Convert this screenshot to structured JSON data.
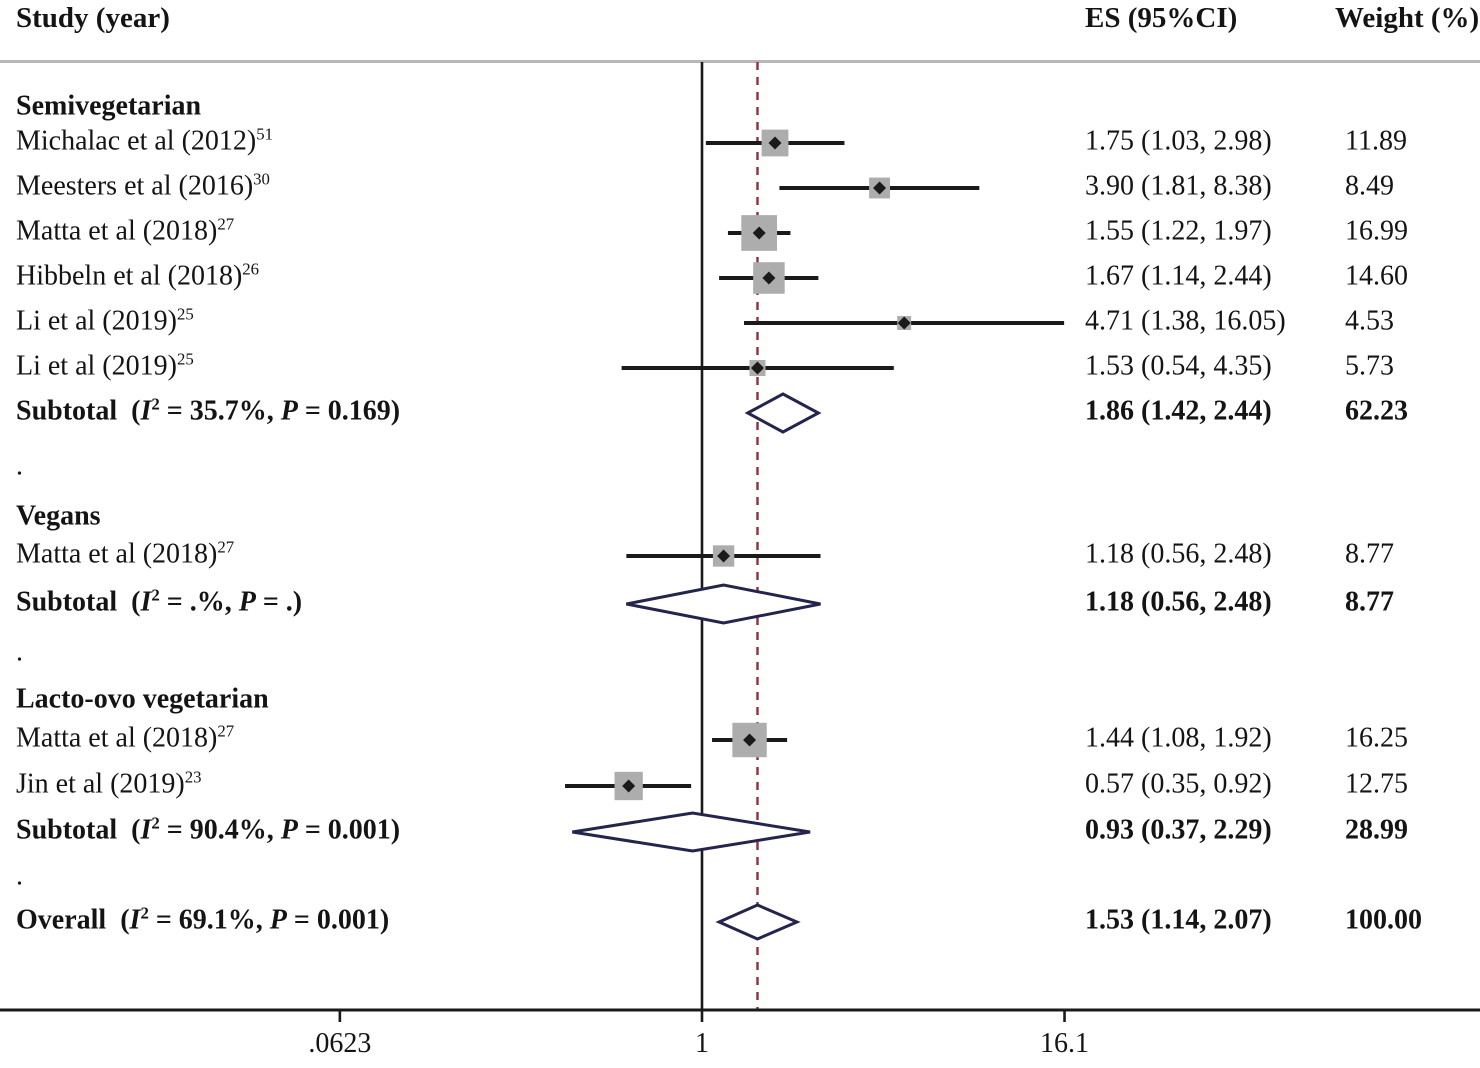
{
  "figure": {
    "header": {
      "study": "Study (year)",
      "es": "ES (95%CI)",
      "weight": "Weight (%)"
    },
    "colors": {
      "ci": "#1a1a1a",
      "square": "#adadad",
      "diamond": "#23254d",
      "null_line": "#1a1a1a",
      "dashed_line": "#8e2f3a",
      "rule": "#b8b8b8"
    }
  },
  "chart_data": {
    "type": "forest",
    "x_axis": {
      "scale": "log",
      "ticks": [
        {
          "value": 0.0623,
          "label": ".0623"
        },
        {
          "value": 1,
          "label": "1"
        },
        {
          "value": 16.1,
          "label": "16.1"
        }
      ],
      "null_value": 1,
      "overall_line": 1.53
    },
    "rows": [
      {
        "type": "group",
        "label": "Semivegetarian"
      },
      {
        "type": "study",
        "label": "Michalac et al (2012)",
        "ref": "51",
        "es": 1.75,
        "lo": 1.03,
        "hi": 2.98,
        "es_text": "1.75 (1.03, 2.98)",
        "weight": 11.89,
        "weight_text": "11.89"
      },
      {
        "type": "study",
        "label": "Meesters et al (2016)",
        "ref": "30",
        "es": 3.9,
        "lo": 1.81,
        "hi": 8.38,
        "es_text": "3.90 (1.81, 8.38)",
        "weight": 8.49,
        "weight_text": "8.49"
      },
      {
        "type": "study",
        "label": "Matta et al (2018)",
        "ref": "27",
        "es": 1.55,
        "lo": 1.22,
        "hi": 1.97,
        "es_text": "1.55 (1.22, 1.97)",
        "weight": 16.99,
        "weight_text": "16.99"
      },
      {
        "type": "study",
        "label": "Hibbeln et al (2018)",
        "ref": "26",
        "es": 1.67,
        "lo": 1.14,
        "hi": 2.44,
        "es_text": "1.67 (1.14, 2.44)",
        "weight": 14.6,
        "weight_text": "14.60"
      },
      {
        "type": "study",
        "label": "Li et al (2019)",
        "ref": "25",
        "es": 4.71,
        "lo": 1.38,
        "hi": 16.05,
        "es_text": "4.71 (1.38, 16.05)",
        "weight": 4.53,
        "weight_text": "4.53"
      },
      {
        "type": "study",
        "label": "Li et al (2019)",
        "ref": "25",
        "es": 1.53,
        "lo": 0.54,
        "hi": 4.35,
        "es_text": "1.53 (0.54, 4.35)",
        "weight": 5.73,
        "weight_text": "5.73"
      },
      {
        "type": "subtotal",
        "i2": "35.7%",
        "p": "0.169",
        "es": 1.86,
        "lo": 1.42,
        "hi": 2.44,
        "es_text": "1.86 (1.42, 2.44)",
        "weight_text": "62.23"
      },
      {
        "type": "dot"
      },
      {
        "type": "group",
        "label": "Vegans"
      },
      {
        "type": "study",
        "label": "Matta et al (2018)",
        "ref": "27",
        "es": 1.18,
        "lo": 0.56,
        "hi": 2.48,
        "es_text": "1.18 (0.56, 2.48)",
        "weight": 8.77,
        "weight_text": "8.77"
      },
      {
        "type": "subtotal",
        "i2": ".%",
        "p": ".",
        "es": 1.18,
        "lo": 0.56,
        "hi": 2.48,
        "es_text": "1.18 (0.56, 2.48)",
        "weight_text": "8.77"
      },
      {
        "type": "dot"
      },
      {
        "type": "group",
        "label": "Lacto-ovo vegetarian"
      },
      {
        "type": "study",
        "label": "Matta et al (2018)",
        "ref": "27",
        "es": 1.44,
        "lo": 1.08,
        "hi": 1.92,
        "es_text": "1.44 (1.08, 1.92)",
        "weight": 16.25,
        "weight_text": "16.25"
      },
      {
        "type": "study",
        "label": "Jin et al (2019)",
        "ref": "23",
        "es": 0.57,
        "lo": 0.35,
        "hi": 0.92,
        "es_text": "0.57 (0.35, 0.92)",
        "weight": 12.75,
        "weight_text": "12.75"
      },
      {
        "type": "subtotal",
        "i2": "90.4%",
        "p": "0.001",
        "es": 0.93,
        "lo": 0.37,
        "hi": 2.29,
        "es_text": "0.93 (0.37, 2.29)",
        "weight_text": "28.99"
      },
      {
        "type": "dot"
      },
      {
        "type": "overall",
        "i2": "69.1%",
        "p": "0.001",
        "es": 1.53,
        "lo": 1.14,
        "hi": 2.07,
        "es_text": "1.53 (1.14, 2.07)",
        "weight_text": "100.00"
      }
    ]
  }
}
